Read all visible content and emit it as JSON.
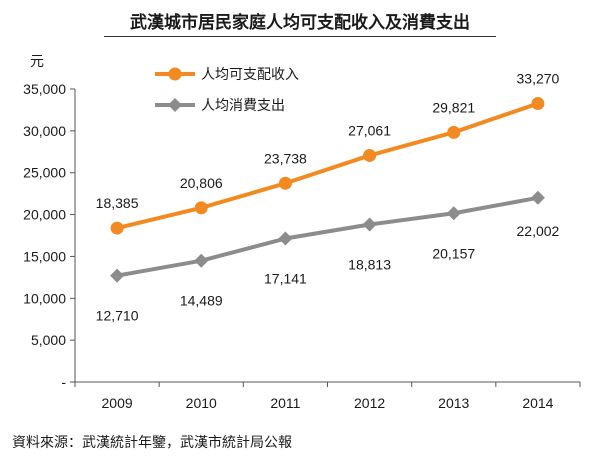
{
  "chart_data": {
    "type": "line",
    "title": "武漢城市居民家庭人均可支配收入及消費支出",
    "ylabel": "元",
    "ylim": [
      0,
      35000
    ],
    "yticks": [
      0,
      5000,
      10000,
      15000,
      20000,
      25000,
      30000,
      35000
    ],
    "ytick_labels": [
      "-",
      "5,000",
      "10,000",
      "15,000",
      "20,000",
      "25,000",
      "30,000",
      "35,000"
    ],
    "categories": [
      "2009",
      "2010",
      "2011",
      "2012",
      "2013",
      "2014"
    ],
    "legend_position": "top-left",
    "grid": false,
    "series": [
      {
        "name": "人均可支配收入",
        "color": "#f28a21",
        "marker": "circle",
        "values": [
          18385,
          20806,
          23738,
          27061,
          29821,
          33270
        ],
        "labels": [
          "18,385",
          "20,806",
          "23,738",
          "27,061",
          "29,821",
          "33,270"
        ]
      },
      {
        "name": "人均消費支出",
        "color": "#8c8c8c",
        "marker": "diamond",
        "values": [
          12710,
          14489,
          17141,
          18813,
          20157,
          22002
        ],
        "labels": [
          "12,710",
          "14,489",
          "17,141",
          "18,813",
          "20,157",
          "22,002"
        ]
      }
    ]
  },
  "source": "資料來源：武漢統計年鑒，武漢市統計局公報"
}
